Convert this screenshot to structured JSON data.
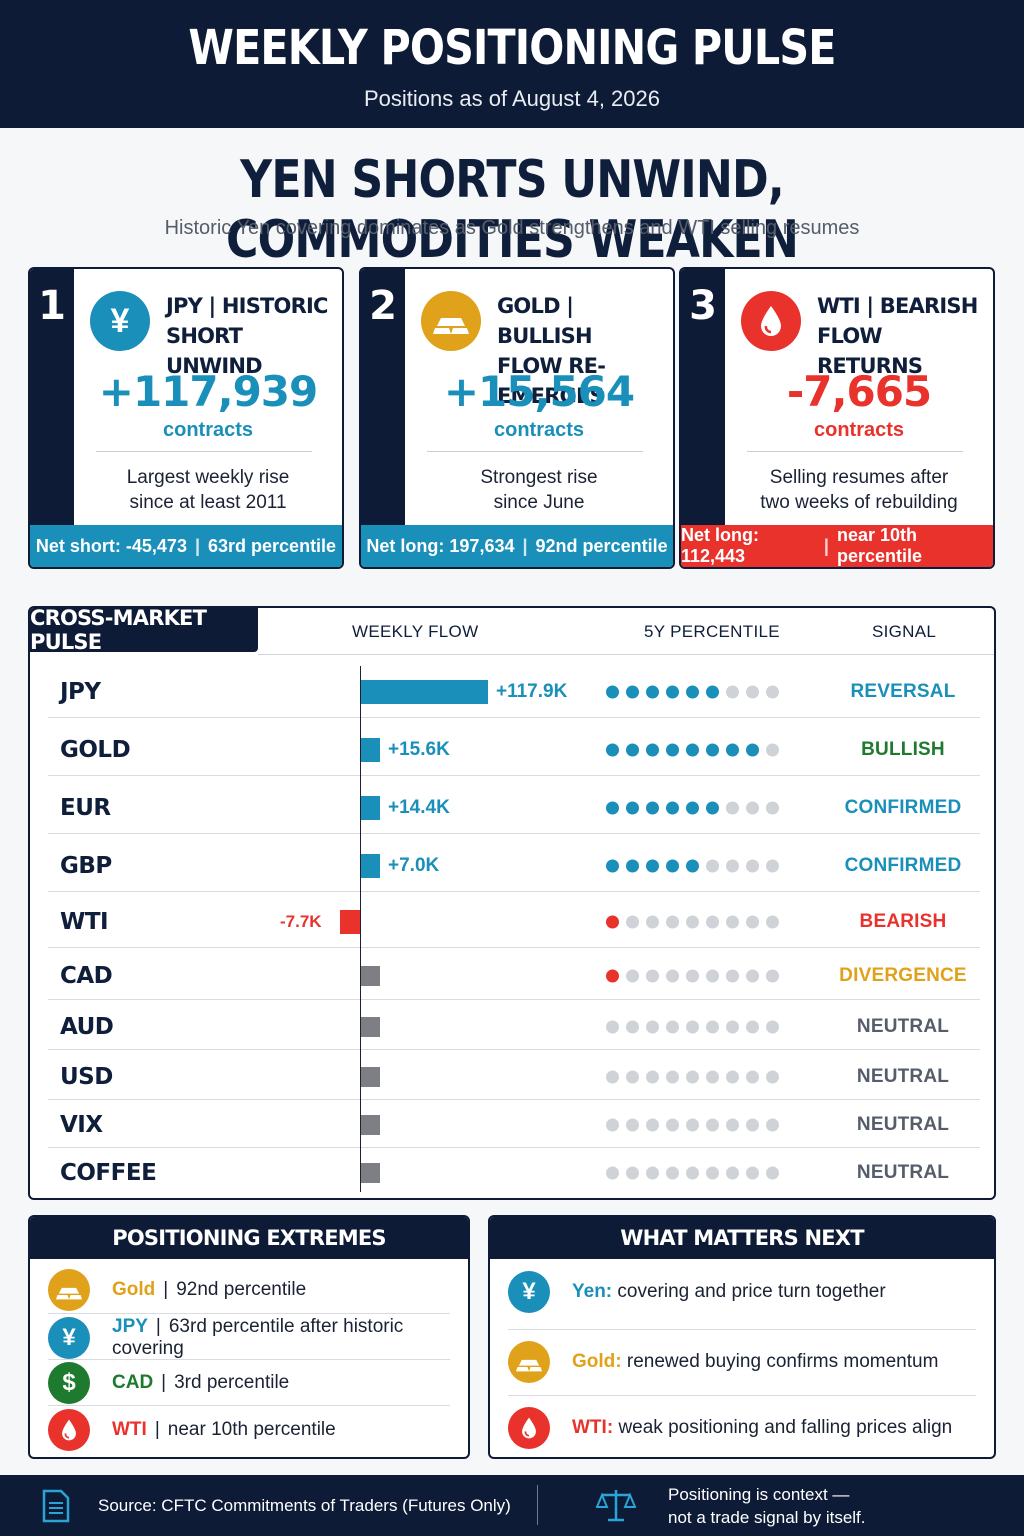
{
  "header": {
    "title": "WEEKLY POSITIONING PULSE",
    "subtitle": "Positions as of August 4, 2026"
  },
  "headline": "YEN SHORTS UNWIND, COMMODITIES WEAKEN",
  "subheadline": "Historic Yen covering dominates as Gold strengthens and WTI selling resumes",
  "cards": [
    {
      "number": "1",
      "icon": "yen-icon",
      "title_line1": "JPY | HISTORIC",
      "title_line2": "SHORT UNWIND",
      "value": "+117,939",
      "unit": "contracts",
      "desc_line1": "Largest weekly rise",
      "desc_line2": "since at least 2011",
      "foot_left": "Net short: -45,473",
      "foot_right": "63rd percentile",
      "color": "#1a8fba"
    },
    {
      "number": "2",
      "icon": "gold-bar-icon",
      "title_line1": "GOLD | BULLISH",
      "title_line2": "FLOW RE-EMERGES",
      "value": "+15,564",
      "unit": "contracts",
      "desc_line1": "Strongest rise",
      "desc_line2": "since June",
      "foot_left": "Net long: 197,634",
      "foot_right": "92nd percentile",
      "color": "#1a8fba"
    },
    {
      "number": "3",
      "icon": "oil-drop-icon",
      "title_line1": "WTI | BEARISH",
      "title_line2": "FLOW RETURNS",
      "value": "-7,665",
      "unit": "contracts",
      "desc_line1": "Selling resumes after",
      "desc_line2": "two weeks of rebuilding",
      "foot_left": "Net long: 112,443",
      "foot_right": "near 10th percentile",
      "color": "#e8322b"
    }
  ],
  "pulse": {
    "tab": "CROSS-MARKET PULSE",
    "col_flow": "WEEKLY FLOW",
    "col_pct": "5Y PERCENTILE",
    "col_signal": "SIGNAL"
  },
  "chart_data": {
    "type": "bar",
    "categories": [
      "JPY",
      "GOLD",
      "EUR",
      "GBP",
      "WTI",
      "CAD",
      "AUD",
      "USD",
      "VIX",
      "COFFEE"
    ],
    "values": [
      117.9,
      15.6,
      14.4,
      7.0,
      -7.7,
      6.5,
      5.4,
      4.8,
      4.6,
      4.5
    ],
    "value_labels": [
      "+117.9K",
      "+15.6K",
      "+14.4K",
      "+7.0K",
      "-7.7K",
      "",
      "",
      "",
      "",
      ""
    ],
    "percentile_dots_filled": [
      6,
      8,
      6,
      5,
      1,
      1,
      0,
      0,
      0,
      0
    ],
    "percentile_dots_total": 9,
    "signals": [
      "REVERSAL",
      "BULLISH",
      "CONFIRMED",
      "CONFIRMED",
      "BEARISH",
      "DIVERGENCE",
      "NEUTRAL",
      "NEUTRAL",
      "NEUTRAL",
      "NEUTRAL"
    ],
    "signal_colors": [
      "#1a8fba",
      "#1e7a2e",
      "#1a8fba",
      "#1a8fba",
      "#e8322b",
      "#e0a21a",
      "#555d6b",
      "#555d6b",
      "#555d6b",
      "#555d6b"
    ],
    "bar_colors": [
      "#1a8fba",
      "#1a8fba",
      "#1a8fba",
      "#1a8fba",
      "#e8322b",
      "#7d7f84",
      "#7d7f84",
      "#7d7f84",
      "#7d7f84",
      "#7d7f84"
    ],
    "dot_colors": [
      "#1a8fba",
      "#1a8fba",
      "#1a8fba",
      "#1a8fba",
      "#e8322b",
      "#e8322b",
      "#1a8fba",
      "#1a8fba",
      "#1a8fba",
      "#1a8fba"
    ]
  },
  "extremes": {
    "title": "POSITIONING EXTREMES",
    "items": [
      {
        "icon": "gold-bar-icon",
        "key": "Gold",
        "text": "92nd percentile",
        "color": "#e0a21a"
      },
      {
        "icon": "yen-icon",
        "key": "JPY",
        "text": "63rd percentile after historic covering",
        "color": "#1a8fba"
      },
      {
        "icon": "dollar-icon",
        "key": "CAD",
        "text": "3rd percentile",
        "color": "#1e7a2e"
      },
      {
        "icon": "oil-drop-icon",
        "key": "WTI",
        "text": "near 10th percentile",
        "color": "#e8322b"
      }
    ]
  },
  "next": {
    "title": "WHAT MATTERS NEXT",
    "items": [
      {
        "icon": "yen-icon",
        "key": "Yen:",
        "text": "covering and price turn together",
        "color": "#1a8fba"
      },
      {
        "icon": "gold-bar-icon",
        "key": "Gold:",
        "text": "renewed buying confirms momentum",
        "color": "#e0a21a"
      },
      {
        "icon": "oil-drop-icon",
        "key": "WTI:",
        "text": "weak positioning and falling prices align",
        "color": "#e8322b"
      }
    ]
  },
  "footer": {
    "source": "Source: CFTC Commitments of Traders (Futures Only)",
    "note_line1": "Positioning is context —",
    "note_line2": "not a trade signal by itself."
  }
}
